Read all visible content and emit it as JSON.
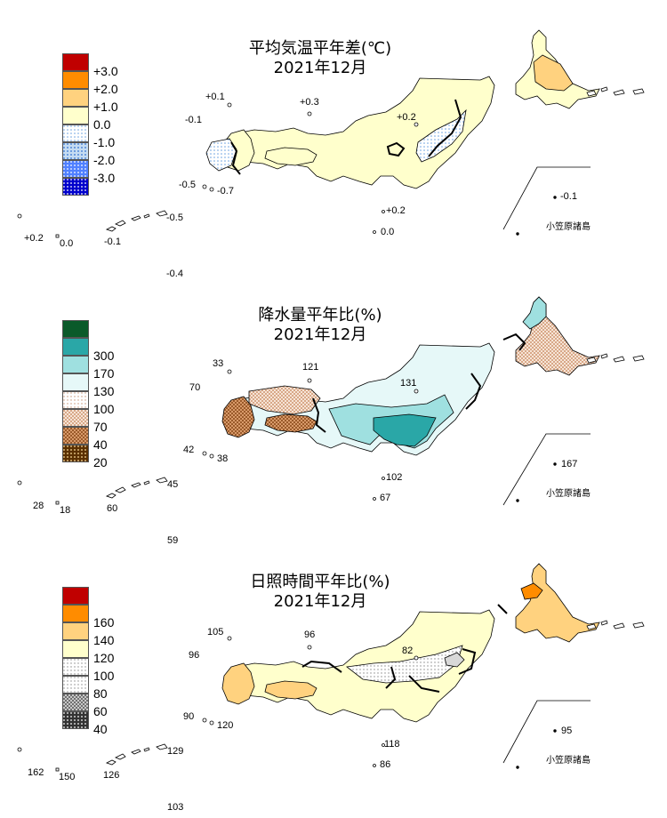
{
  "panels": [
    {
      "id": "temperature",
      "title_line1": "平均気温平年差(℃)",
      "title_line2": "2021年12月",
      "legend": [
        {
          "label": "+3.0",
          "color": "#c00000",
          "pattern": "solid"
        },
        {
          "label": "+2.0",
          "color": "#ff8c00",
          "pattern": "solid"
        },
        {
          "label": "+1.0",
          "color": "#ffd27f",
          "pattern": "solid"
        },
        {
          "label": "0.0",
          "color": "#ffffcc",
          "pattern": "solid"
        },
        {
          "label": "-1.0",
          "color": "#ffffff",
          "pattern": "dots-lightblue"
        },
        {
          "label": "-2.0",
          "color": "#c5dcf2",
          "pattern": "dots-blue"
        },
        {
          "label": "-3.0",
          "color": "#5080ff",
          "pattern": "dots-darkblue"
        },
        {
          "label": "",
          "color": "#0000cc",
          "pattern": "dots-navy"
        }
      ],
      "station_values": [
        "+0.1",
        "+0.3",
        "-0.1",
        "+0.2",
        "-0.5",
        "-0.7",
        "+0.2",
        "0.0",
        "-0.5",
        "+0.2",
        "0.0",
        "-0.1",
        "-0.4",
        "-0.1"
      ],
      "ogasawara_label": "小笠原諸島"
    },
    {
      "id": "precipitation",
      "title_line1": "降水量平年比(%)",
      "title_line2": "2021年12月",
      "legend": [
        {
          "label": "",
          "color": "#0b5a2a",
          "pattern": "solid"
        },
        {
          "label": "300",
          "color": "#2aa7a7",
          "pattern": "solid"
        },
        {
          "label": "170",
          "color": "#9fe0e0",
          "pattern": "solid"
        },
        {
          "label": "130",
          "color": "#e6f8f8",
          "pattern": "solid"
        },
        {
          "label": "100",
          "color": "#ffffff",
          "pattern": "dots-tan"
        },
        {
          "label": "70",
          "color": "#f0d6c4",
          "pattern": "check-tan"
        },
        {
          "label": "40",
          "color": "#b87a4a",
          "pattern": "check-brown"
        },
        {
          "label": "20",
          "color": "#5a3000",
          "pattern": "dots-dark"
        }
      ],
      "station_values": [
        "33",
        "121",
        "70",
        "131",
        "42",
        "38",
        "102",
        "45",
        "28",
        "18",
        "60",
        "67",
        "59",
        "167"
      ],
      "ogasawara_label": "小笠原諸島"
    },
    {
      "id": "sunshine",
      "title_line1": "日照時間平年比(%)",
      "title_line2": "2021年12月",
      "legend": [
        {
          "label": "",
          "color": "#c00000",
          "pattern": "solid"
        },
        {
          "label": "160",
          "color": "#ff8c00",
          "pattern": "solid"
        },
        {
          "label": "140",
          "color": "#ffd27f",
          "pattern": "solid"
        },
        {
          "label": "120",
          "color": "#ffffcc",
          "pattern": "solid"
        },
        {
          "label": "100",
          "color": "#ffffff",
          "pattern": "dots-grey"
        },
        {
          "label": "80",
          "color": "#d8d8d8",
          "pattern": "dots-grey"
        },
        {
          "label": "60",
          "color": "#9a9a9a",
          "pattern": "check-grey"
        },
        {
          "label": "40",
          "color": "#333333",
          "pattern": "dots-white"
        }
      ],
      "station_values": [
        "105",
        "96",
        "96",
        "82",
        "90",
        "120",
        "118",
        "162",
        "150",
        "126",
        "129",
        "86",
        "103",
        "95"
      ],
      "ogasawara_label": "小笠原諸島"
    }
  ]
}
